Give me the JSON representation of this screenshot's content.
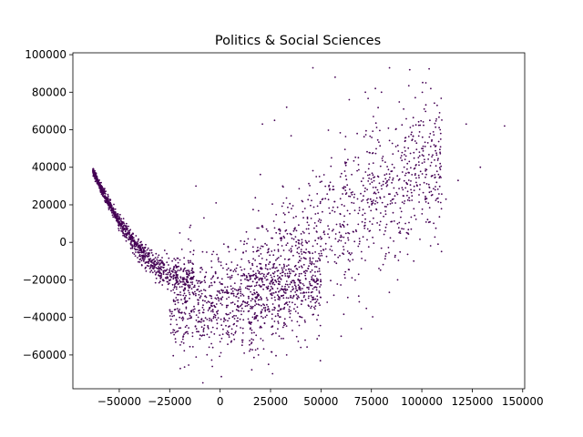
{
  "chart_data": {
    "type": "scatter",
    "title": "Politics & Social Sciences",
    "xlabel": "",
    "ylabel": "",
    "xlim": [
      -73000,
      151000
    ],
    "ylim": [
      -78000,
      101000
    ],
    "x_ticks": [
      -50000,
      -25000,
      0,
      25000,
      50000,
      75000,
      100000,
      125000,
      150000
    ],
    "x_tick_labels": [
      "−50000",
      "−25000",
      "0",
      "25000",
      "50000",
      "75000",
      "100000",
      "125000",
      "150000"
    ],
    "y_ticks": [
      -60000,
      -40000,
      -20000,
      0,
      20000,
      40000,
      60000,
      80000,
      100000
    ],
    "y_tick_labels": [
      "−60000",
      "−40000",
      "−20000",
      "0",
      "20000",
      "40000",
      "60000",
      "80000",
      "100000"
    ],
    "grid": false,
    "legend": "none",
    "marker_color": "#440154",
    "point_count": 3000,
    "points": [
      [
        46000,
        93000
      ],
      [
        57000,
        88000
      ],
      [
        84000,
        93000
      ],
      [
        94000,
        92000
      ],
      [
        102000,
        85000
      ],
      [
        141000,
        62000
      ],
      [
        129000,
        40000
      ],
      [
        122000,
        63000
      ],
      [
        118000,
        33000
      ],
      [
        112000,
        23000
      ],
      [
        104000,
        65000
      ],
      [
        103000,
        53000
      ],
      [
        33000,
        72000
      ],
      [
        21000,
        63000
      ],
      [
        27000,
        65000
      ],
      [
        -2000,
        21000
      ],
      [
        -8000,
        13000
      ],
      [
        -15000,
        8000
      ],
      [
        -20000,
        5000
      ],
      [
        -12000,
        30000
      ],
      [
        24000,
        -65000
      ],
      [
        26000,
        -70000
      ],
      [
        19000,
        -60000
      ],
      [
        15000,
        -57000
      ],
      [
        33000,
        -60000
      ],
      [
        40000,
        -56000
      ],
      [
        60000,
        -50000
      ],
      [
        70000,
        -46000
      ],
      [
        88000,
        -20000
      ],
      [
        96000,
        -10000
      ],
      [
        80000,
        80000
      ],
      [
        77000,
        82000
      ],
      [
        72000,
        80000
      ],
      [
        64000,
        76000
      ],
      [
        91000,
        71000
      ]
    ]
  }
}
